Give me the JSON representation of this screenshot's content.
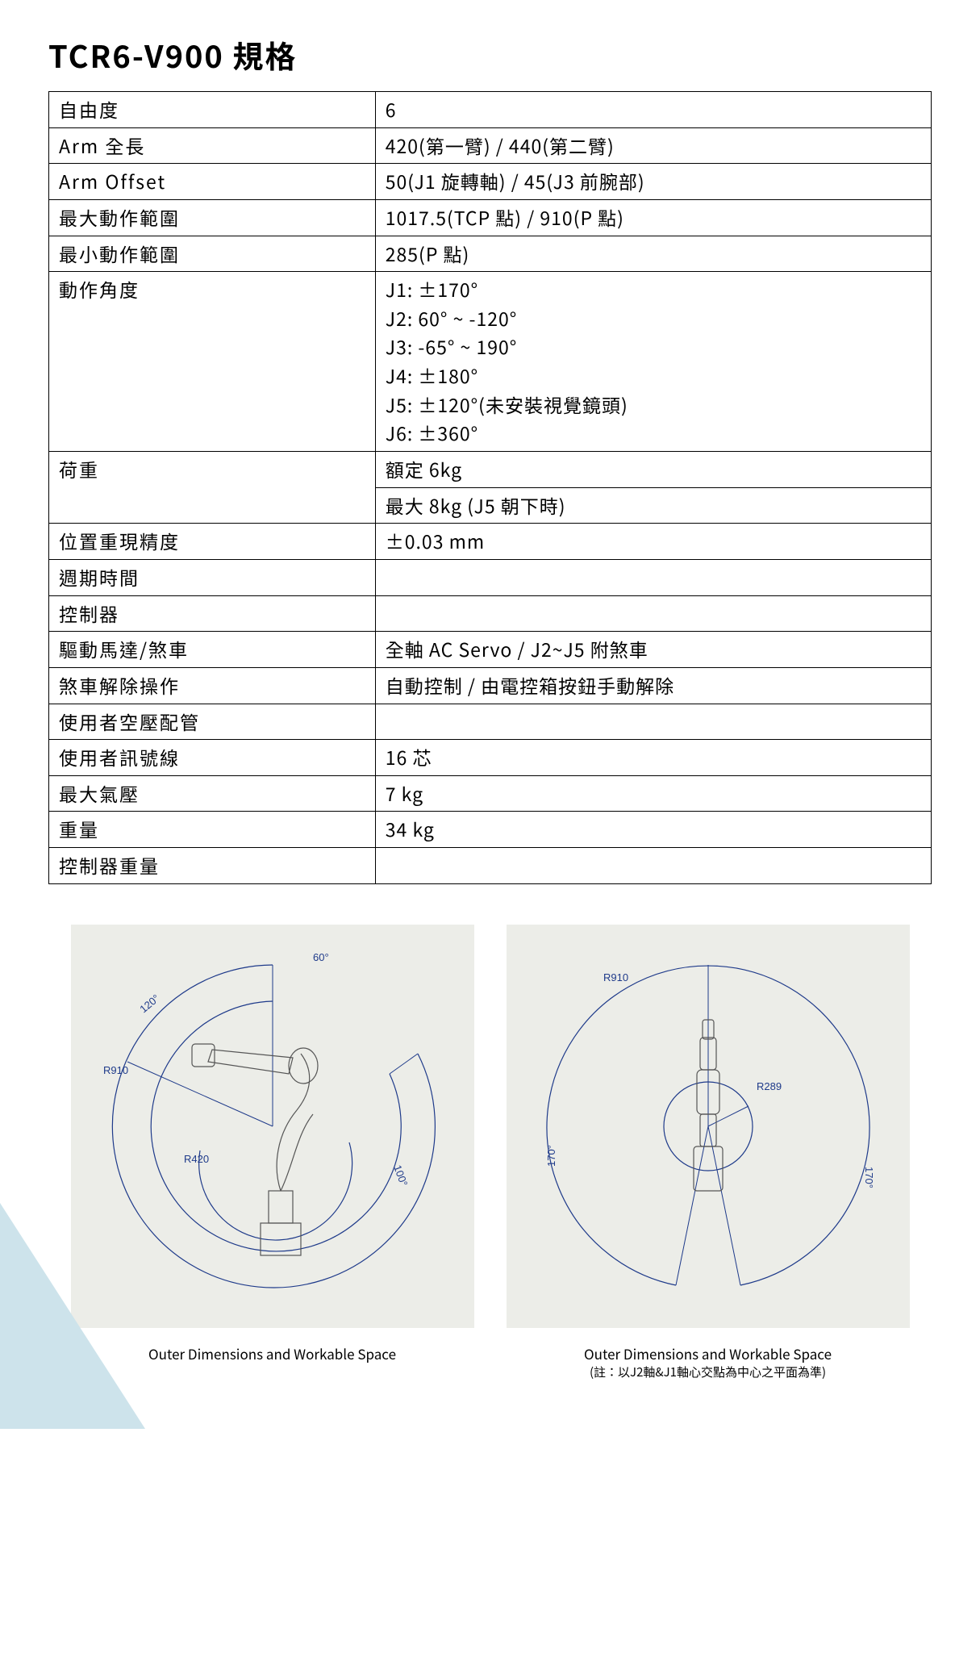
{
  "title": "TCR6-V900 規格",
  "rows": [
    {
      "label": "自由度",
      "value": "6"
    },
    {
      "label": "Arm 全長",
      "value": "420(第一臂) / 440(第二臂)"
    },
    {
      "label": "Arm Offset",
      "value": "50(J1 旋轉軸) / 45(J3 前腕部)"
    },
    {
      "label": "最大動作範圍",
      "value": "1017.5(TCP 點) / 910(P 點)"
    },
    {
      "label": "最小動作範圍",
      "value": "285(P 點)"
    },
    {
      "label": "動作角度",
      "value_lines": [
        "J1: ±170°",
        "J2: 60° ~ -120°",
        "J3: -65° ~ 190°",
        "J4: ±180°",
        "J5: ±120°(未安裝視覺鏡頭)",
        "J6: ±360°"
      ]
    },
    {
      "label": "荷重",
      "rowspan": 2,
      "sub_values": [
        "額定 6kg",
        "最大 8kg (J5 朝下時)"
      ]
    },
    {
      "label": "位置重現精度",
      "value": "±0.03 mm"
    },
    {
      "label": "週期時間",
      "value": ""
    },
    {
      "label": "控制器",
      "value": ""
    },
    {
      "label": "驅動馬達/煞車",
      "value": "全軸 AC Servo / J2~J5 附煞車"
    },
    {
      "label": "煞車解除操作",
      "value": "自動控制 / 由電控箱按鈕手動解除"
    },
    {
      "label": "使用者空壓配管",
      "value": ""
    },
    {
      "label": "使用者訊號線",
      "value": "16 芯"
    },
    {
      "label": "最大氣壓",
      "value": "7 kg"
    },
    {
      "label": "重量",
      "value": "34 kg"
    },
    {
      "label": "控制器重量",
      "value": ""
    }
  ],
  "diagram1": {
    "caption": "Outer Dimensions and Workable Space",
    "labels": {
      "r910": "R910",
      "r420": "R420",
      "a60": "60°",
      "a120": "120°",
      "a100": "100°"
    },
    "bg": "#ecede8",
    "stroke": "#1e3a8a"
  },
  "diagram2": {
    "caption": "Outer Dimensions and Workable Space",
    "caption_sub": "(註：以J2軸&J1軸心交點為中心之平面為準)",
    "labels": {
      "r910": "R910",
      "r289": "R289",
      "a170l": "170°",
      "a170r": "170°"
    },
    "bg": "#ecede8",
    "stroke": "#1e3a8a"
  }
}
